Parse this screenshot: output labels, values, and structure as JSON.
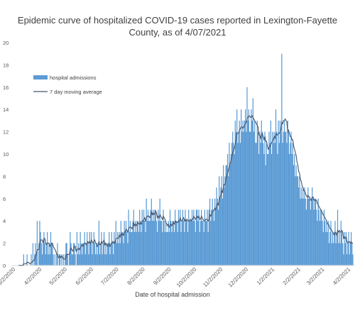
{
  "chart_data": {
    "type": "bar",
    "title_line1": "Epidemic curve of hospitalized COVID-19 cases reported in Lexington-Fayette",
    "title_line2": "County, as of 4/07/2021",
    "xlabel": "Date of hospital admission",
    "ylabel": "",
    "ylim": [
      0,
      20
    ],
    "y_ticks": [
      0,
      2,
      4,
      6,
      8,
      10,
      12,
      14,
      16,
      18,
      20
    ],
    "x_tick_labels": [
      "3/2/2020",
      "4/2/2020",
      "5/2/2020",
      "6/2/2020",
      "7/2/2020",
      "8/2/2020",
      "9/2/2020",
      "10/2/2020",
      "11/2/2020",
      "12/2/2020",
      "1/2/2021",
      "2/2/2021",
      "3/2/2021",
      "4/2/2021"
    ],
    "x_tick_dates": [
      "2020-03-02",
      "2020-04-02",
      "2020-05-02",
      "2020-06-02",
      "2020-07-02",
      "2020-08-02",
      "2020-09-02",
      "2020-10-02",
      "2020-11-02",
      "2020-12-02",
      "2021-01-02",
      "2021-02-02",
      "2021-03-02",
      "2021-04-02"
    ],
    "x_first_date": "2020-03-02",
    "x_last_date": "2021-04-07",
    "grid": false,
    "legend_position": "top-left",
    "series": [
      {
        "name": "hospital admissions",
        "kind": "bar",
        "color": "#5b9bd5"
      },
      {
        "name": "7 day moving average",
        "kind": "line",
        "color": "#44546a"
      }
    ],
    "weekly": [
      {
        "start": "2020-03-02",
        "values": [
          0,
          0,
          0,
          0,
          0,
          0,
          0
        ]
      },
      {
        "start": "2020-03-09",
        "values": [
          0,
          0,
          0,
          0,
          0,
          1,
          0
        ]
      },
      {
        "start": "2020-03-16",
        "values": [
          0,
          0,
          1,
          0,
          0,
          0,
          0
        ]
      },
      {
        "start": "2020-03-23",
        "values": [
          1,
          0,
          2,
          0,
          1,
          2,
          1
        ]
      },
      {
        "start": "2020-03-30",
        "values": [
          4,
          0,
          2,
          4,
          3,
          2,
          1
        ]
      },
      {
        "start": "2020-04-06",
        "values": [
          2,
          3,
          2,
          1,
          2,
          3,
          1
        ]
      },
      {
        "start": "2020-04-13",
        "values": [
          2,
          1,
          3,
          2,
          2,
          1,
          0
        ]
      },
      {
        "start": "2020-04-20",
        "values": [
          1,
          0,
          1,
          2,
          0,
          1,
          1
        ]
      },
      {
        "start": "2020-04-27",
        "values": [
          0,
          1,
          0,
          1,
          0,
          1,
          2
        ]
      },
      {
        "start": "2020-05-04",
        "values": [
          2,
          1,
          0,
          1,
          3,
          2,
          1
        ]
      },
      {
        "start": "2020-05-11",
        "values": [
          1,
          2,
          2,
          1,
          0,
          3,
          1
        ]
      },
      {
        "start": "2020-05-18",
        "values": [
          2,
          1,
          3,
          2,
          1,
          2,
          2
        ]
      },
      {
        "start": "2020-05-25",
        "values": [
          3,
          1,
          2,
          3,
          2,
          1,
          3
        ]
      },
      {
        "start": "2020-06-01",
        "values": [
          2,
          3,
          1,
          2,
          3,
          2,
          1
        ]
      },
      {
        "start": "2020-06-08",
        "values": [
          2,
          1,
          2,
          4,
          1,
          2,
          3
        ]
      },
      {
        "start": "2020-06-15",
        "values": [
          1,
          2,
          3,
          1,
          2,
          1,
          2
        ]
      },
      {
        "start": "2020-06-22",
        "values": [
          2,
          3,
          1,
          2,
          3,
          2,
          1
        ]
      },
      {
        "start": "2020-06-29",
        "values": [
          3,
          2,
          4,
          2,
          3,
          2,
          3
        ]
      },
      {
        "start": "2020-07-06",
        "values": [
          2,
          4,
          3,
          3,
          2,
          4,
          3
        ]
      },
      {
        "start": "2020-07-13",
        "values": [
          4,
          3,
          2,
          5,
          3,
          4,
          3
        ]
      },
      {
        "start": "2020-07-20",
        "values": [
          3,
          4,
          5,
          3,
          4,
          3,
          4
        ]
      },
      {
        "start": "2020-07-27",
        "values": [
          4,
          3,
          5,
          4,
          3,
          5,
          4
        ]
      },
      {
        "start": "2020-08-03",
        "values": [
          5,
          4,
          3,
          6,
          4,
          5,
          4
        ]
      },
      {
        "start": "2020-08-10",
        "values": [
          4,
          5,
          6,
          4,
          5,
          4,
          5
        ]
      },
      {
        "start": "2020-08-17",
        "values": [
          5,
          4,
          3,
          5,
          4,
          6,
          4
        ]
      },
      {
        "start": "2020-08-24",
        "values": [
          4,
          3,
          5,
          4,
          3,
          4,
          3
        ]
      },
      {
        "start": "2020-08-31",
        "values": [
          3,
          4,
          3,
          5,
          4,
          3,
          4
        ]
      },
      {
        "start": "2020-09-07",
        "values": [
          4,
          3,
          5,
          4,
          4,
          3,
          5
        ]
      },
      {
        "start": "2020-09-14",
        "values": [
          4,
          5,
          3,
          4,
          5,
          4,
          3
        ]
      },
      {
        "start": "2020-09-21",
        "values": [
          5,
          4,
          4,
          3,
          5,
          4,
          4
        ]
      },
      {
        "start": "2020-09-28",
        "values": [
          4,
          5,
          4,
          5,
          4,
          3,
          5
        ]
      },
      {
        "start": "2020-10-05",
        "values": [
          5,
          4,
          5,
          3,
          4,
          5,
          4
        ]
      },
      {
        "start": "2020-10-12",
        "values": [
          4,
          3,
          5,
          4,
          4,
          5,
          3
        ]
      },
      {
        "start": "2020-10-19",
        "values": [
          5,
          6,
          4,
          5,
          6,
          5,
          4
        ]
      },
      {
        "start": "2020-10-26",
        "values": [
          6,
          5,
          7,
          6,
          5,
          8,
          6
        ]
      },
      {
        "start": "2020-11-02",
        "values": [
          7,
          8,
          6,
          9,
          7,
          8,
          9
        ]
      },
      {
        "start": "2020-11-09",
        "values": [
          9,
          10,
          8,
          11,
          9,
          10,
          11
        ]
      },
      {
        "start": "2020-11-16",
        "values": [
          12,
          11,
          10,
          13,
          12,
          14,
          11
        ]
      },
      {
        "start": "2020-11-23",
        "values": [
          12,
          13,
          11,
          14,
          12,
          13,
          12
        ]
      },
      {
        "start": "2020-11-30",
        "values": [
          13,
          14,
          12,
          16,
          13,
          14,
          12
        ]
      },
      {
        "start": "2020-12-07",
        "values": [
          12,
          14,
          13,
          15,
          12,
          13,
          11
        ]
      },
      {
        "start": "2020-12-14",
        "values": [
          11,
          13,
          12,
          10,
          12,
          11,
          13
        ]
      },
      {
        "start": "2020-12-21",
        "values": [
          12,
          11,
          10,
          12,
          9,
          11,
          10
        ]
      },
      {
        "start": "2020-12-28",
        "values": [
          10,
          12,
          11,
          13,
          10,
          12,
          11
        ]
      },
      {
        "start": "2021-01-04",
        "values": [
          12,
          11,
          14,
          12,
          10,
          13,
          11
        ]
      },
      {
        "start": "2021-01-11",
        "values": [
          13,
          12,
          19,
          11,
          12,
          13,
          12
        ]
      },
      {
        "start": "2021-01-18",
        "values": [
          12,
          11,
          13,
          12,
          10,
          11,
          12
        ]
      },
      {
        "start": "2021-01-25",
        "values": [
          10,
          11,
          9,
          10,
          8,
          9,
          8
        ]
      },
      {
        "start": "2021-02-01",
        "values": [
          8,
          7,
          8,
          6,
          7,
          6,
          7
        ]
      },
      {
        "start": "2021-02-08",
        "values": [
          6,
          7,
          6,
          5,
          6,
          7,
          6
        ]
      },
      {
        "start": "2021-02-15",
        "values": [
          6,
          5,
          6,
          7,
          6,
          5,
          6
        ]
      },
      {
        "start": "2021-02-22",
        "values": [
          6,
          5,
          4,
          6,
          5,
          4,
          5
        ]
      },
      {
        "start": "2021-03-01",
        "values": [
          5,
          4,
          3,
          5,
          4,
          3,
          4
        ]
      },
      {
        "start": "2021-03-08",
        "values": [
          3,
          4,
          2,
          3,
          4,
          2,
          3
        ]
      },
      {
        "start": "2021-03-15",
        "values": [
          2,
          3,
          4,
          2,
          3,
          5,
          2
        ]
      },
      {
        "start": "2021-03-22",
        "values": [
          3,
          2,
          4,
          3,
          2,
          1,
          3
        ]
      },
      {
        "start": "2021-03-29",
        "values": [
          2,
          3,
          1,
          2,
          3,
          1,
          2
        ]
      },
      {
        "start": "2021-04-05",
        "values": [
          3,
          2,
          1
        ]
      }
    ]
  }
}
